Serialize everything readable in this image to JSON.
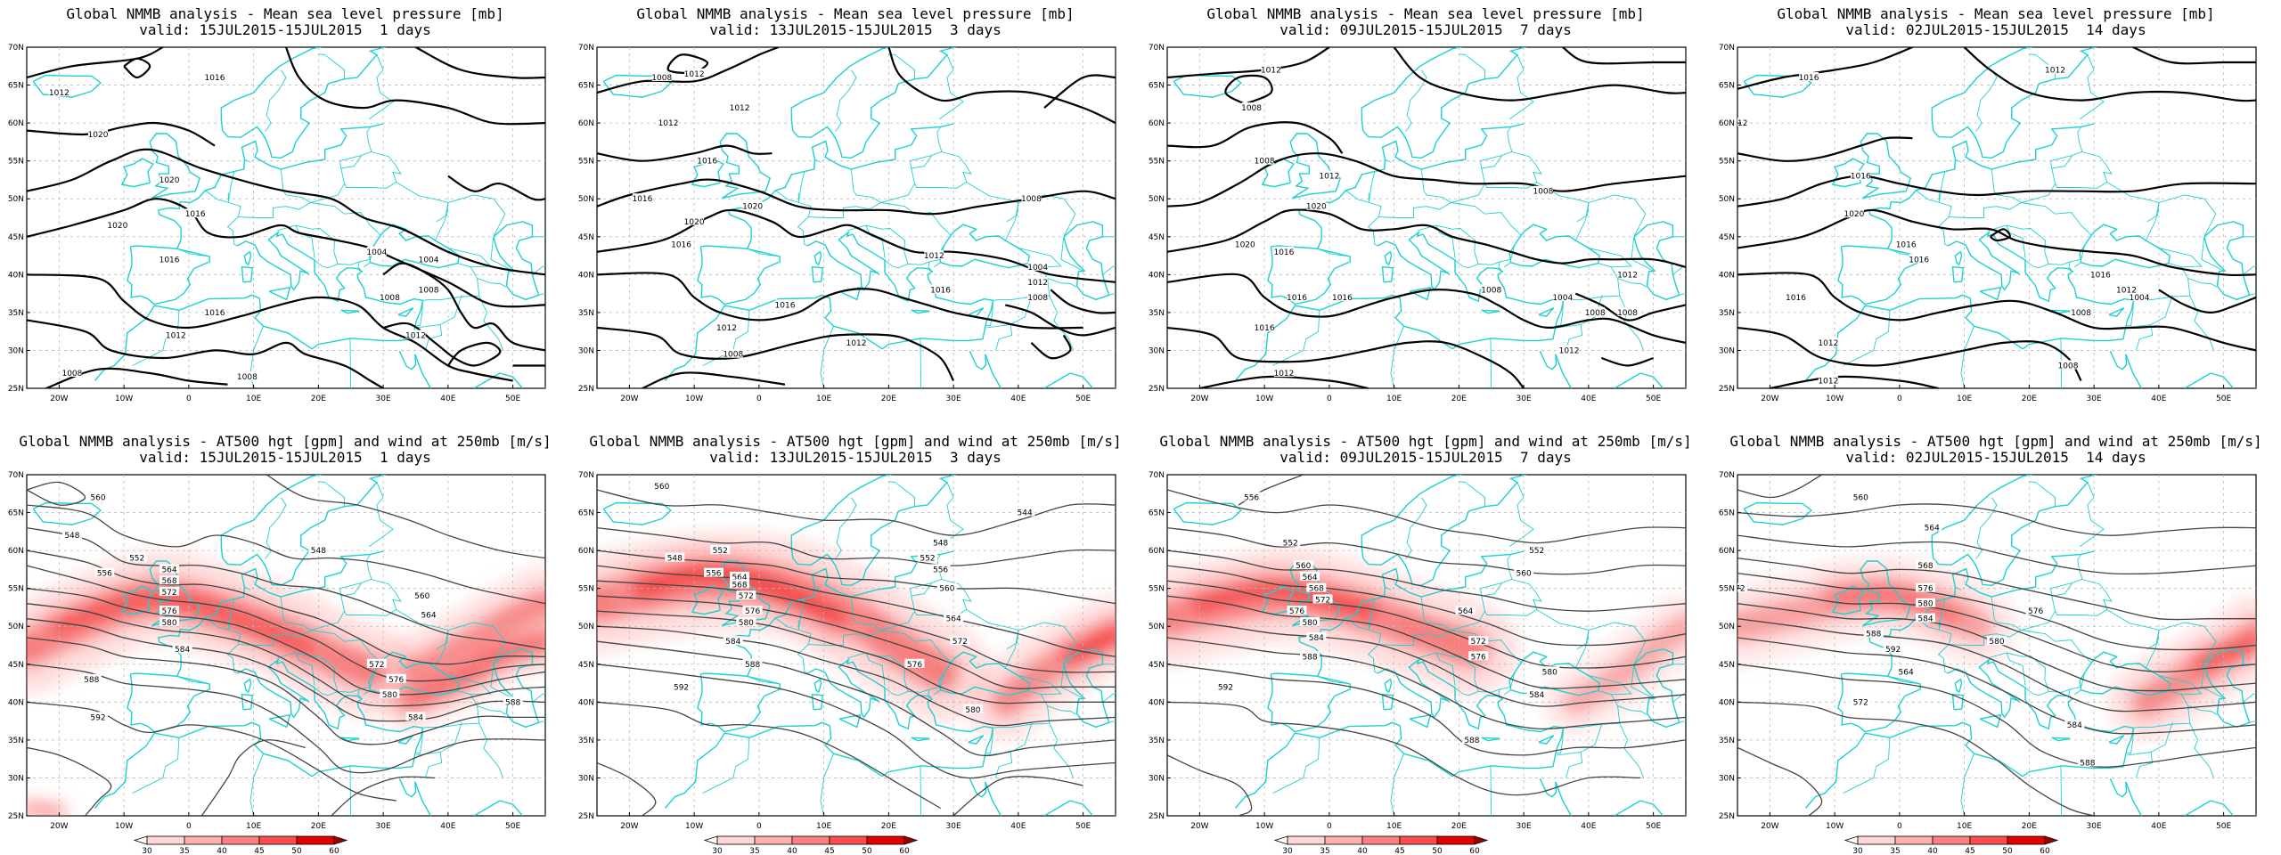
{
  "panels": [
    {
      "row": 0,
      "col": 0,
      "title_line1": "Global NMMB analysis - Mean sea level pressure [mb]",
      "title_line2": "valid: 15JUL2015-15JUL2015  1 days",
      "kind": "mslp"
    },
    {
      "row": 0,
      "col": 1,
      "title_line1": "Global NMMB analysis - Mean sea level pressure [mb]",
      "title_line2": "valid: 13JUL2015-15JUL2015  3 days",
      "kind": "mslp"
    },
    {
      "row": 0,
      "col": 2,
      "title_line1": "Global NMMB analysis - Mean sea level pressure [mb]",
      "title_line2": "valid: 09JUL2015-15JUL2015  7 days",
      "kind": "mslp"
    },
    {
      "row": 0,
      "col": 3,
      "title_line1": "Global NMMB analysis - Mean sea level pressure [mb]",
      "title_line2": "valid: 02JUL2015-15JUL2015  14 days",
      "kind": "mslp"
    },
    {
      "row": 1,
      "col": 0,
      "title_line1": "Global NMMB analysis - AT500 hgt [gpm] and wind at 250mb [m/s]",
      "title_line2": "valid: 15JUL2015-15JUL2015  1 days",
      "kind": "hgt"
    },
    {
      "row": 1,
      "col": 1,
      "title_line1": "Global NMMB analysis - AT500 hgt [gpm] and wind at 250mb [m/s]",
      "title_line2": "valid: 13JUL2015-15JUL2015  3 days",
      "kind": "hgt"
    },
    {
      "row": 1,
      "col": 2,
      "title_line1": "Global NMMB analysis - AT500 hgt [gpm] and wind at 250mb [m/s]",
      "title_line2": "valid: 09JUL2015-15JUL2015  7 days",
      "kind": "hgt"
    },
    {
      "row": 1,
      "col": 3,
      "title_line1": "Global NMMB analysis - AT500 hgt [gpm] and wind at 250mb [m/s]",
      "title_line2": "valid: 02JUL2015-15JUL2015  14 days",
      "kind": "hgt"
    }
  ],
  "axes": {
    "lat_labels": [
      "70N",
      "65N",
      "60N",
      "55N",
      "50N",
      "45N",
      "40N",
      "35N",
      "30N",
      "25N"
    ],
    "lon_labels": [
      "20W",
      "10W",
      "0",
      "10E",
      "20E",
      "30E",
      "40E",
      "50E"
    ]
  },
  "mslp_labels": [
    [
      "1012",
      "1016",
      "1020",
      "1020",
      "1020",
      "1016",
      "1016",
      "1016",
      "1012",
      "1008",
      "1008",
      "1004",
      "1004",
      "1008",
      "1012",
      "1008"
    ],
    [
      "1012",
      "1008",
      "1012",
      "1012",
      "1016",
      "1016",
      "1020",
      "1020",
      "1016",
      "1016",
      "1012",
      "1012",
      "1008",
      "1008",
      "1004",
      "1012",
      "1016",
      "1012",
      "1008"
    ],
    [
      "1012",
      "1008",
      "1008",
      "1012",
      "1016",
      "1020",
      "1020",
      "1016",
      "1016",
      "1016",
      "1012",
      "1008",
      "1008",
      "1004",
      "1008",
      "1012",
      "1012",
      "1008"
    ],
    [
      "1012",
      "1016",
      "1012",
      "1016",
      "1020",
      "1016",
      "1016",
      "1016",
      "1012",
      "1008",
      "1004",
      "1008",
      "1012",
      "1016",
      "1012"
    ]
  ],
  "hgt_labels": [
    [
      "560",
      "548",
      "552",
      "556",
      "564",
      "568",
      "572",
      "576",
      "580",
      "584",
      "588",
      "592",
      "548",
      "560",
      "564",
      "572",
      "576",
      "580",
      "584",
      "588"
    ],
    [
      "560",
      "548",
      "552",
      "556",
      "564",
      "568",
      "572",
      "576",
      "580",
      "584",
      "588",
      "592",
      "544",
      "548",
      "552",
      "556",
      "560",
      "564",
      "572",
      "576",
      "580"
    ],
    [
      "556",
      "552",
      "560",
      "564",
      "568",
      "572",
      "576",
      "580",
      "584",
      "588",
      "592",
      "552",
      "560",
      "564",
      "572",
      "576",
      "580",
      "584",
      "588"
    ],
    [
      "560",
      "564",
      "568",
      "572",
      "576",
      "580",
      "584",
      "588",
      "592",
      "564",
      "572",
      "576",
      "580",
      "584",
      "588"
    ]
  ],
  "colorbar": {
    "ticks": [
      "30",
      "35",
      "40",
      "45",
      "50",
      "60"
    ],
    "colors": [
      "#ffffff",
      "#ffd6d6",
      "#ffb0b0",
      "#ff8080",
      "#ff4d4d",
      "#e60000",
      "#a00000"
    ]
  }
}
